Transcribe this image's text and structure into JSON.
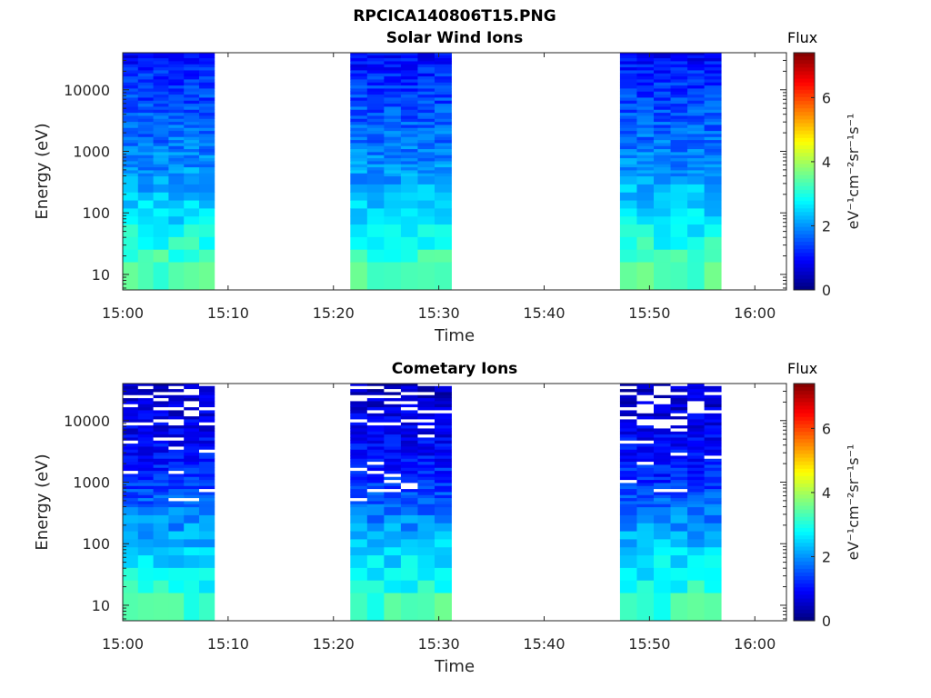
{
  "figure": {
    "title": "RPCICA140806T15.PNG"
  },
  "colormap": "jet",
  "chart_data": [
    {
      "type": "heatmap",
      "title": "Solar Wind Ions",
      "xlabel": "Time",
      "ylabel": "Energy (eV)",
      "x_ticks": [
        "15:00",
        "15:10",
        "15:20",
        "15:30",
        "15:40",
        "15:50",
        "16:00"
      ],
      "x_range_minutes": [
        0,
        63
      ],
      "y_scale": "log",
      "y_ticks": [
        "10",
        "100",
        "1000",
        "10000"
      ],
      "ylim": [
        5.6,
        40000
      ],
      "colorbar": {
        "label": "Flux",
        "units": "eV⁻¹cm⁻²sr⁻¹s⁻¹",
        "ticks": [
          "0",
          "2",
          "4",
          "6"
        ],
        "range": [
          0,
          7.4
        ]
      },
      "data_intervals": [
        {
          "start": "15:00",
          "end": "15:08.7"
        },
        {
          "start": "15:21.6",
          "end": "15:31.2"
        },
        {
          "start": "15:47.2",
          "end": "15:56.8"
        }
      ],
      "flux_profile": {
        "energy_eV": [
          10,
          30,
          80,
          200,
          500,
          1200,
          3000,
          8000,
          20000,
          35000
        ],
        "flux": [
          3.4,
          3.0,
          2.6,
          2.3,
          2.0,
          1.8,
          1.6,
          1.4,
          1.2,
          0.9
        ]
      }
    },
    {
      "type": "heatmap",
      "title": "Cometary Ions",
      "xlabel": "Time",
      "ylabel": "Energy (eV)",
      "x_ticks": [
        "15:00",
        "15:10",
        "15:20",
        "15:30",
        "15:40",
        "15:50",
        "16:00"
      ],
      "x_range_minutes": [
        0,
        63
      ],
      "y_scale": "log",
      "y_ticks": [
        "10",
        "100",
        "1000",
        "10000"
      ],
      "ylim": [
        5.6,
        40000
      ],
      "colorbar": {
        "label": "Flux",
        "units": "eV⁻¹cm⁻²sr⁻¹s⁻¹",
        "ticks": [
          "0",
          "2",
          "4",
          "6"
        ],
        "range": [
          0,
          7.4
        ]
      },
      "data_intervals": [
        {
          "start": "15:00",
          "end": "15:08.7"
        },
        {
          "start": "15:21.6",
          "end": "15:31.2"
        },
        {
          "start": "15:47.2",
          "end": "15:56.8"
        }
      ],
      "flux_profile": {
        "energy_eV": [
          10,
          30,
          80,
          200,
          500,
          1200,
          3000,
          8000,
          20000,
          35000
        ],
        "flux": [
          3.2,
          2.8,
          2.4,
          2.0,
          1.6,
          1.2,
          1.0,
          0.8,
          0.6,
          0.5
        ]
      }
    }
  ]
}
